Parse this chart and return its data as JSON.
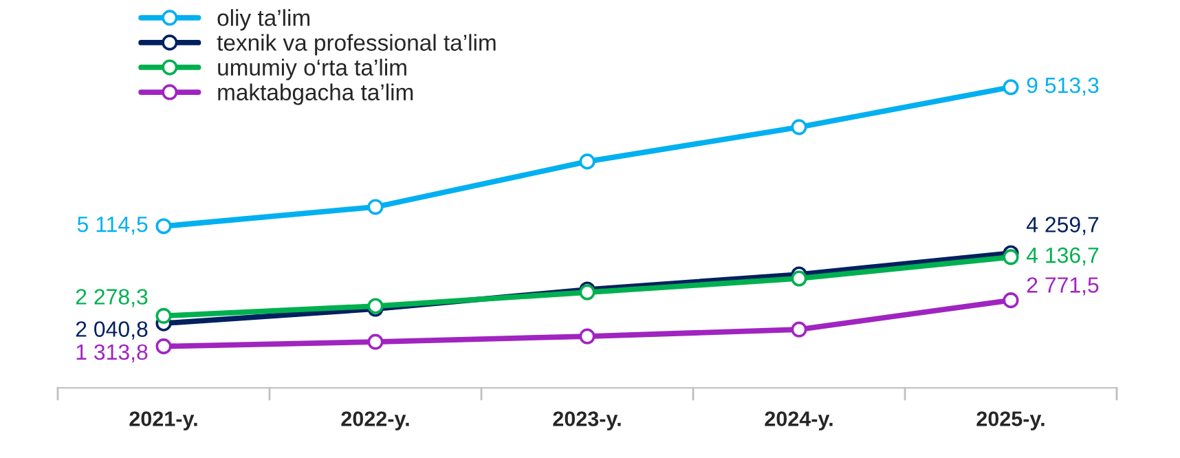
{
  "chart_data": {
    "type": "line",
    "categories": [
      "2021-y.",
      "2022-y.",
      "2023-y.",
      "2024-y.",
      "2025-y."
    ],
    "marker": "circle",
    "line_style": "solid",
    "legend": "top left",
    "grid": false,
    "series": [
      {
        "name": "oliy ta’lim",
        "color": "#00b0f0",
        "values": [
          5114.5,
          5724,
          7161,
          8250,
          9513.3
        ],
        "value_labels": [
          "5 114,5",
          null,
          null,
          null,
          "9 513,3"
        ]
      },
      {
        "name": "texnik va professional ta’lim",
        "color": "#002060",
        "values": [
          2040.8,
          2501,
          3111,
          3590,
          4259.7
        ],
        "value_labels": [
          "2 040,8",
          null,
          null,
          null,
          "4 259,7"
        ]
      },
      {
        "name": "umumiy o‘rta ta’lim",
        "color": "#00b050",
        "values": [
          2278.3,
          2589,
          3024,
          3460,
          4136.7
        ],
        "value_labels": [
          "2 278,3",
          null,
          null,
          null,
          "4 136,7"
        ]
      },
      {
        "name": "maktabgacha ta’lim",
        "color": "#a024c0",
        "values": [
          1313.8,
          1456,
          1630,
          1848,
          2771.5
        ],
        "value_labels": [
          "1 313,8",
          null,
          null,
          null,
          "2 771,5"
        ]
      }
    ]
  }
}
